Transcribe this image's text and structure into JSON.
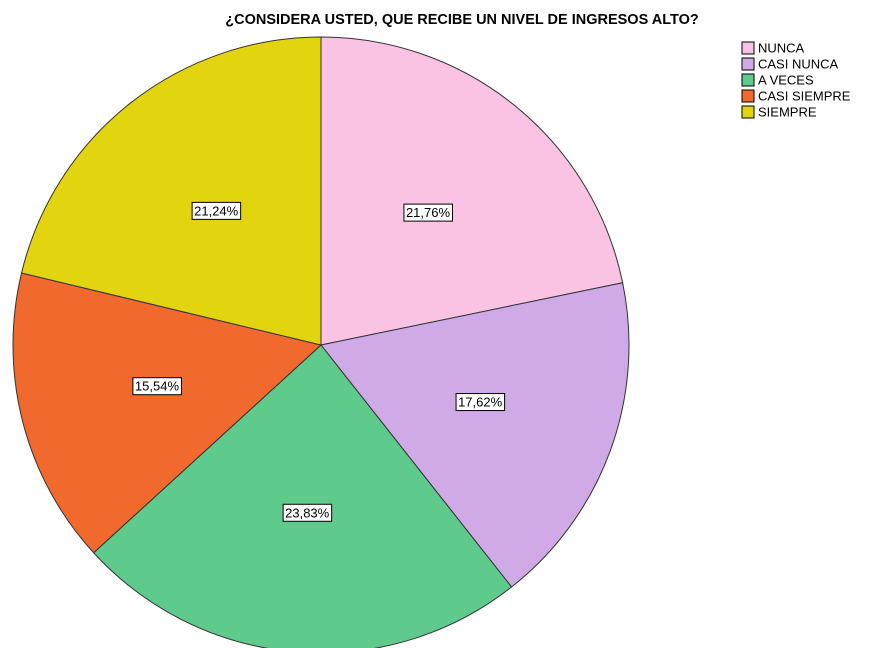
{
  "chart_data": {
    "type": "pie",
    "title": "¿CONSIDERA USTED, QUE RECIBE UN NIVEL DE INGRESOS ALTO?",
    "categories": [
      "NUNCA",
      "CASI NUNCA",
      "A VECES",
      "CASI SIEMPRE",
      "SIEMPRE"
    ],
    "values": [
      21.76,
      17.62,
      23.83,
      15.54,
      21.24
    ],
    "value_labels": [
      "21,76%",
      "17,62%",
      "23,83%",
      "15,54%",
      "21,24%"
    ],
    "colors": [
      "#fbc3e3",
      "#cfaae6",
      "#5ecb8c",
      "#f2692d",
      "#e2d50f"
    ],
    "legend": "top-right"
  }
}
